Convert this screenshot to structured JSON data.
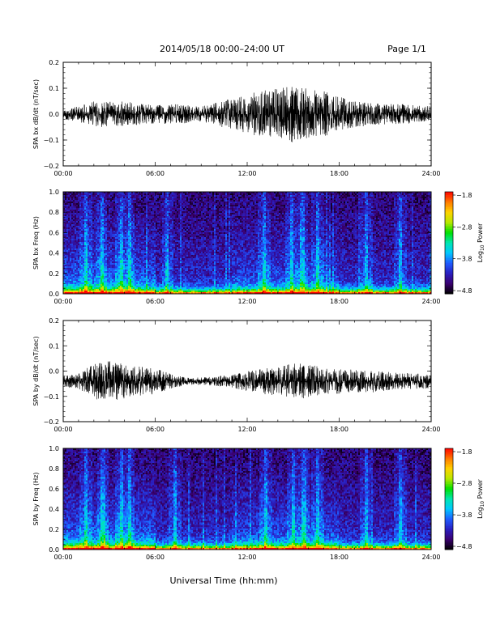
{
  "header": {
    "title": "2014/05/18  00:00–24:00 UT",
    "page": "Page 1/1"
  },
  "footer": {
    "xlabel": "Universal Time (hh:mm)"
  },
  "colorbar": {
    "label_prefix": "Log",
    "label_sub": "10",
    "label_suffix": " Power",
    "ticks": [
      "−1.8",
      "−2.8",
      "−3.8",
      "−4.8"
    ],
    "colormap": [
      "#000000",
      "#3b0070",
      "#2a1fc0",
      "#1f5cff",
      "#00c8ff",
      "#00e6b0",
      "#00e000",
      "#b8e800",
      "#ffd200",
      "#ff7800",
      "#ff0000"
    ]
  },
  "colors": {
    "trace": "#000000",
    "background": "#ffffff"
  },
  "chart_data": [
    {
      "type": "line",
      "ylabel": "SPA bx dB/dt (nT/sec)",
      "xticks": [
        "00:00",
        "06:00",
        "12:00",
        "18:00",
        "24:00"
      ],
      "yticks": [
        "0.2",
        "0.1",
        "0.0",
        "−0.1",
        "−0.2"
      ],
      "xlim": [
        0,
        24
      ],
      "ylim": [
        -0.2,
        0.2
      ],
      "baseline": 0.0,
      "envelope_hours": [
        0,
        1,
        2,
        3,
        4,
        5,
        6,
        7,
        8,
        9,
        10,
        11,
        12,
        13,
        14,
        15,
        16,
        17,
        18,
        19,
        20,
        21,
        22,
        23,
        24
      ],
      "envelope_amp": [
        0.02,
        0.03,
        0.05,
        0.05,
        0.05,
        0.04,
        0.035,
        0.04,
        0.035,
        0.03,
        0.045,
        0.06,
        0.08,
        0.09,
        0.1,
        0.11,
        0.1,
        0.09,
        0.07,
        0.05,
        0.045,
        0.04,
        0.04,
        0.035,
        0.03
      ]
    },
    {
      "type": "heatmap",
      "ylabel": "SPA bx Freq (Hz)",
      "xticks": [
        "00:00",
        "06:00",
        "12:00",
        "18:00",
        "24:00"
      ],
      "yticks": [
        "1.0",
        "0.8",
        "0.6",
        "0.4",
        "0.2",
        "0.0"
      ],
      "xlim": [
        0,
        24
      ],
      "ylim": [
        0.0,
        1.0
      ],
      "zlim": [
        -4.8,
        -1.8
      ],
      "colorbar_label": "Log10 Power",
      "burst_hours": [
        1.5,
        2.5,
        3.8,
        4.3,
        6.8,
        13.1,
        14.9,
        15.6,
        16.6,
        19.8,
        22.0
      ]
    },
    {
      "type": "line",
      "ylabel": "SPA by dB/dt (nT/sec)",
      "xticks": [
        "00:00",
        "06:00",
        "12:00",
        "18:00",
        "24:00"
      ],
      "yticks": [
        "0.2",
        "0.1",
        "0.0",
        "−0.1",
        "−0.2"
      ],
      "xlim": [
        0,
        24
      ],
      "ylim": [
        -0.2,
        0.2
      ],
      "baseline": -0.04,
      "envelope_hours": [
        0,
        1,
        2,
        3,
        4,
        5,
        6,
        7,
        8,
        9,
        10,
        11,
        12,
        13,
        14,
        15,
        16,
        17,
        18,
        19,
        20,
        21,
        22,
        23,
        24
      ],
      "envelope_amp": [
        0.02,
        0.03,
        0.07,
        0.08,
        0.07,
        0.06,
        0.05,
        0.03,
        0.015,
        0.015,
        0.02,
        0.025,
        0.04,
        0.05,
        0.06,
        0.07,
        0.07,
        0.05,
        0.05,
        0.045,
        0.045,
        0.04,
        0.035,
        0.03,
        0.03
      ]
    },
    {
      "type": "heatmap",
      "ylabel": "SPA by Freq (Hz)",
      "xticks": [
        "00:00",
        "06:00",
        "12:00",
        "18:00",
        "24:00"
      ],
      "yticks": [
        "1.0",
        "0.8",
        "0.6",
        "0.4",
        "0.2",
        "0.0"
      ],
      "xlim": [
        0,
        24
      ],
      "ylim": [
        0.0,
        1.0
      ],
      "zlim": [
        -4.8,
        -1.8
      ],
      "colorbar_label": "Log10 Power",
      "burst_hours": [
        1.5,
        2.6,
        3.8,
        4.3,
        7.3,
        13.2,
        15.0,
        15.7,
        16.6,
        19.8,
        22.0
      ]
    }
  ]
}
